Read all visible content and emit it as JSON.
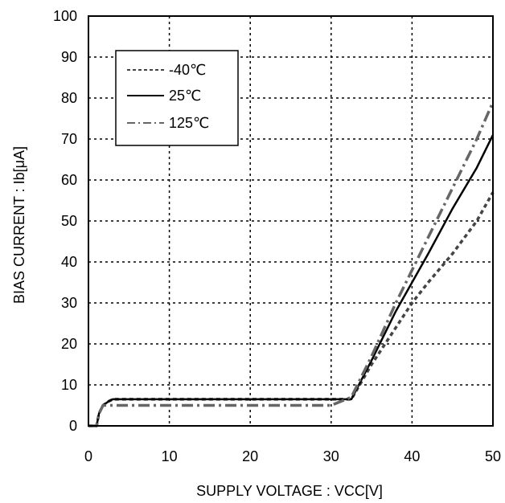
{
  "chart_data": {
    "type": "line",
    "title": "",
    "xlabel": "SUPPLY VOLTAGE : VCC[V]",
    "ylabel": "BIAS CURRENT : Ib[μA]",
    "xlim": [
      0,
      50
    ],
    "ylim": [
      0,
      100
    ],
    "xticks": [
      "0",
      "10",
      "20",
      "30",
      "40",
      "50"
    ],
    "yticks": [
      "0",
      "10",
      "20",
      "30",
      "40",
      "50",
      "60",
      "70",
      "80",
      "90",
      "100"
    ],
    "grid": true,
    "legend_position": "top-left",
    "series": [
      {
        "name": "-40℃",
        "style": "dashed",
        "color": "#444444",
        "x": [
          0,
          1.0,
          1.3,
          1.8,
          2.5,
          3.0,
          10,
          20,
          30,
          32.5,
          35,
          38,
          40,
          42,
          45,
          48,
          50
        ],
        "y": [
          0,
          0,
          3,
          5,
          6,
          6.5,
          6.5,
          6.5,
          6.5,
          6.5,
          15,
          24,
          30,
          35,
          42,
          50,
          57
        ]
      },
      {
        "name": "25℃",
        "style": "solid",
        "color": "#000000",
        "x": [
          0,
          1.0,
          1.3,
          1.8,
          2.5,
          3.0,
          10,
          20,
          30,
          32.5,
          35,
          38,
          40,
          42,
          45,
          48,
          50
        ],
        "y": [
          0,
          0,
          3,
          5,
          6,
          6.5,
          6.5,
          6.5,
          6.5,
          6.5,
          16,
          28,
          35,
          42,
          53,
          63,
          71
        ]
      },
      {
        "name": "125℃",
        "style": "dashdot",
        "color": "#666666",
        "x": [
          0,
          1.0,
          1.3,
          1.8,
          2.5,
          3.0,
          10,
          20,
          30,
          32.5,
          35,
          38,
          40,
          42,
          45,
          48,
          50
        ],
        "y": [
          0,
          0,
          3,
          5,
          5,
          5,
          5,
          5,
          5,
          7,
          17,
          30,
          38,
          46,
          58,
          70,
          79
        ]
      }
    ]
  }
}
